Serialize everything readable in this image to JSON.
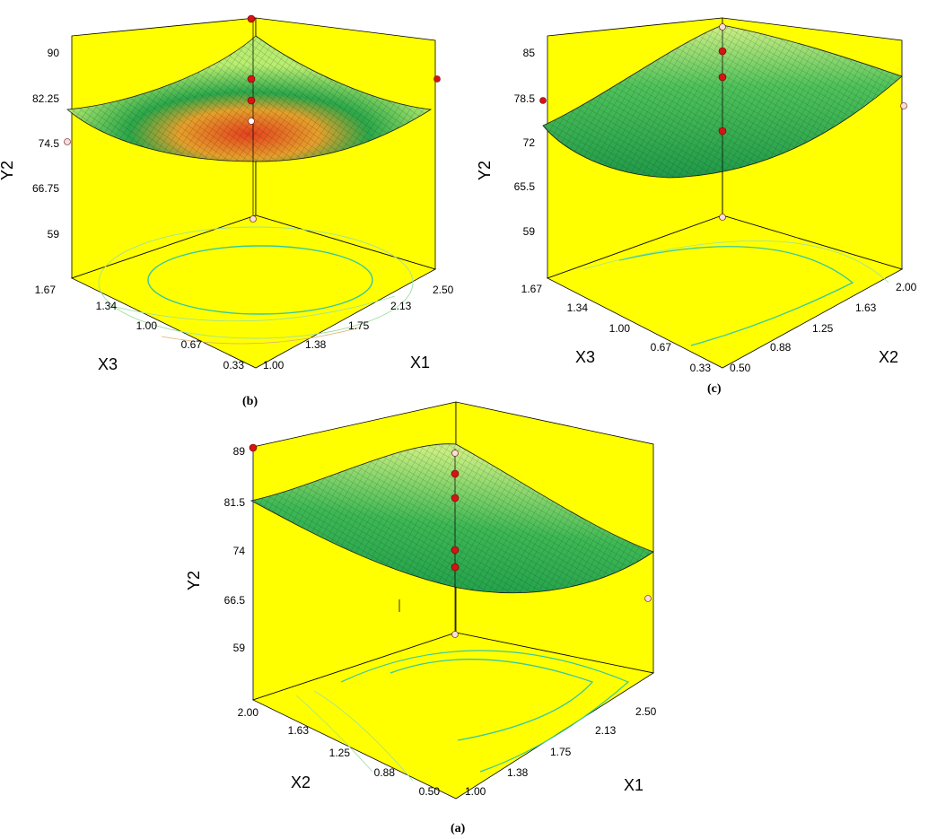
{
  "chart_data": [
    {
      "type": "surface",
      "panel": "b",
      "caption": "(b)",
      "zlabel": "Y2",
      "xlabel": "X1",
      "ylabel": "X3",
      "z_ticks": [
        "90",
        "82.25",
        "74.5",
        "66.75",
        "59"
      ],
      "x_ticks": [
        "1.00",
        "1.38",
        "1.75",
        "2.13",
        "2.50"
      ],
      "y_ticks": [
        "0.33",
        "0.67",
        "1.00",
        "1.34",
        "1.67"
      ],
      "zlim": [
        59,
        90
      ],
      "xlim": [
        1.0,
        2.5
      ],
      "ylim": [
        0.33,
        1.67
      ],
      "surface_shape": "bowl",
      "surface_points": [
        {
          "x1": 1.0,
          "x3": 0.33,
          "y2": 79
        },
        {
          "x1": 1.75,
          "x3": 1.0,
          "y2": 76
        },
        {
          "x1": 2.5,
          "x3": 1.67,
          "y2": 79
        }
      ],
      "design_points": [
        {
          "y2": 91.5
        },
        {
          "y2": 84.5
        },
        {
          "y2": 81
        },
        {
          "y2": 78
        },
        {
          "y2": 84.5
        },
        {
          "y2": 74.5
        }
      ]
    },
    {
      "type": "surface",
      "panel": "c",
      "caption": "(c)",
      "zlabel": "Y2",
      "xlabel": "X2",
      "ylabel": "X3",
      "z_ticks": [
        "85",
        "78.5",
        "72",
        "65.5",
        "59"
      ],
      "x_ticks": [
        "0.50",
        "0.88",
        "1.25",
        "1.63",
        "2.00"
      ],
      "y_ticks": [
        "0.33",
        "0.67",
        "1.00",
        "1.34",
        "1.67"
      ],
      "zlim": [
        59,
        85
      ],
      "xlim": [
        0.5,
        2.0
      ],
      "ylim": [
        0.33,
        1.67
      ],
      "surface_shape": "bowl",
      "surface_points": [
        {
          "x2": 0.5,
          "x3": 0.33,
          "y2": 70
        },
        {
          "x2": 1.25,
          "x3": 1.0,
          "y2": 70
        },
        {
          "x2": 2.0,
          "x3": 1.67,
          "y2": 78
        }
      ],
      "design_points": [
        {
          "y2": 85
        },
        {
          "y2": 83
        },
        {
          "y2": 81
        },
        {
          "y2": 78
        },
        {
          "y2": 78.5
        },
        {
          "y2": 78
        }
      ]
    },
    {
      "type": "surface",
      "panel": "a",
      "caption": "(a)",
      "zlabel": "Y2",
      "xlabel": "X1",
      "ylabel": "X2",
      "z_ticks": [
        "89",
        "81.5",
        "74",
        "66.5",
        "59"
      ],
      "x_ticks": [
        "1.00",
        "1.38",
        "1.75",
        "2.13",
        "2.50"
      ],
      "y_ticks": [
        "0.50",
        "0.88",
        "1.25",
        "1.63",
        "2.00"
      ],
      "zlim": [
        59,
        89
      ],
      "xlim": [
        1.0,
        2.5
      ],
      "ylim": [
        0.5,
        2.0
      ],
      "surface_shape": "saddle-trough",
      "surface_points": [
        {
          "x1": 1.0,
          "x2": 2.0,
          "y2": 81.5
        },
        {
          "x1": 1.75,
          "x2": 1.25,
          "y2": 75
        },
        {
          "x1": 2.5,
          "x2": 0.5,
          "y2": 76
        }
      ],
      "design_points": [
        {
          "y2": 89
        },
        {
          "y2": 86
        },
        {
          "y2": 84
        },
        {
          "y2": 80
        },
        {
          "y2": 78
        },
        {
          "y2": 67
        }
      ]
    }
  ],
  "colors": {
    "wall": "#ffff00",
    "surface_low": "#e6411e",
    "surface_mid": "#1fa64a",
    "surface_high": "#c8f07a",
    "mesh": "#1a1a1a",
    "contour": "#35c9a0",
    "design_point": "#d61414",
    "design_point_below": "#f4dede"
  }
}
